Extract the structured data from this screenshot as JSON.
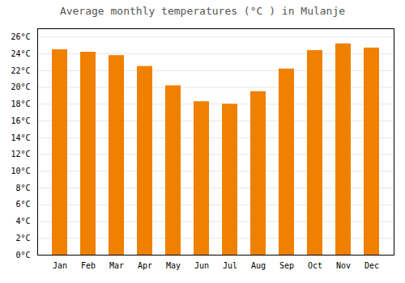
{
  "chart_data": {
    "type": "bar",
    "title": "Average monthly temperatures (°C ) in Mulanje",
    "categories": [
      "Jan",
      "Feb",
      "Mar",
      "Apr",
      "May",
      "Jun",
      "Jul",
      "Aug",
      "Sep",
      "Oct",
      "Nov",
      "Dec"
    ],
    "values": [
      24.5,
      24.2,
      23.8,
      22.5,
      20.2,
      18.3,
      18.0,
      19.5,
      22.2,
      24.4,
      25.2,
      24.7
    ],
    "color": "#F08000",
    "ylim": [
      0,
      27
    ],
    "yticks": [
      {
        "value": 0,
        "label": "0°C"
      },
      {
        "value": 2,
        "label": "2°C"
      },
      {
        "value": 4,
        "label": "4°C"
      },
      {
        "value": 6,
        "label": "6°C"
      },
      {
        "value": 8,
        "label": "8°C"
      },
      {
        "value": 10,
        "label": "10°C"
      },
      {
        "value": 12,
        "label": "12°C"
      },
      {
        "value": 14,
        "label": "14°C"
      },
      {
        "value": 16,
        "label": "16°C"
      },
      {
        "value": 18,
        "label": "18°C"
      },
      {
        "value": 20,
        "label": "20°C"
      },
      {
        "value": 22,
        "label": "22°C"
      },
      {
        "value": 24,
        "label": "24°C"
      },
      {
        "value": 26,
        "label": "26°C"
      }
    ],
    "grid": true
  }
}
